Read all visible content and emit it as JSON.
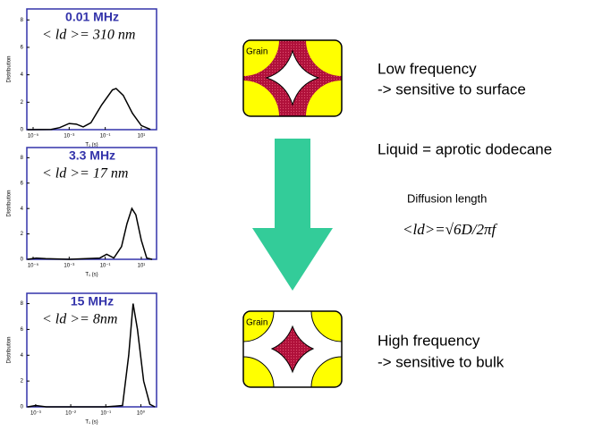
{
  "chart_data": [
    {
      "type": "line",
      "title": "0.01 MHz",
      "annotation": "< ld >= 310 nm",
      "x_label": "T₁ (s)",
      "y_label": "Distribution",
      "x_log": true,
      "xlim": [
        4.5e-06,
        70
      ],
      "ylim": [
        0,
        8.8
      ],
      "xticks": [
        {
          "value": 1e-05,
          "label": "10⁻⁵"
        },
        {
          "value": 0.001,
          "label": "10⁻³"
        },
        {
          "value": 0.1,
          "label": "10⁻¹"
        },
        {
          "value": 10,
          "label": "10¹"
        }
      ],
      "yticks": [
        0,
        2,
        4,
        6,
        8
      ],
      "series": [
        {
          "color": "#000000",
          "x": [
            5e-06,
            0.0001,
            0.0003,
            0.001,
            0.0025,
            0.006,
            0.016,
            0.063,
            0.25,
            0.4,
            1,
            3.2,
            10,
            32
          ],
          "values": [
            0,
            0.02,
            0.15,
            0.45,
            0.4,
            0.2,
            0.5,
            1.8,
            2.9,
            3.0,
            2.5,
            1.2,
            0.3,
            0.02
          ]
        }
      ]
    },
    {
      "type": "line",
      "title": "3.3 MHz",
      "annotation": "< ld >= 17 nm",
      "x_label": "T₁ (s)",
      "y_label": "Distribution",
      "x_log": true,
      "xlim": [
        4.5e-06,
        70
      ],
      "ylim": [
        0,
        8.8
      ],
      "xticks": [
        {
          "value": 1e-05,
          "label": "10⁻⁵"
        },
        {
          "value": 0.001,
          "label": "10⁻³"
        },
        {
          "value": 0.1,
          "label": "10⁻¹"
        },
        {
          "value": 10,
          "label": "10¹"
        }
      ],
      "yticks": [
        0,
        2,
        4,
        6,
        8
      ],
      "series": [
        {
          "color": "#000000",
          "x": [
            5e-06,
            1.5e-05,
            5e-05,
            0.001,
            0.05,
            0.12,
            0.3,
            0.8,
            1.6,
            3,
            5,
            10,
            20,
            40
          ],
          "values": [
            0,
            0.1,
            0.05,
            0,
            0.1,
            0.4,
            0.1,
            1.0,
            2.8,
            4.0,
            3.5,
            1.5,
            0.1,
            0
          ]
        }
      ]
    },
    {
      "type": "line",
      "title": "15 MHz",
      "annotation": "< ld >= 8nm",
      "x_label": "T₁ (s)",
      "y_label": "Distribution",
      "x_log": true,
      "xlim": [
        0.00056,
        2.8
      ],
      "ylim": [
        0,
        8.8
      ],
      "xticks": [
        {
          "value": 0.001,
          "label": "10⁻³"
        },
        {
          "value": 0.01,
          "label": "10⁻²"
        },
        {
          "value": 0.1,
          "label": "10⁻¹"
        },
        {
          "value": 1,
          "label": "10⁰"
        }
      ],
      "yticks": [
        0,
        2,
        4,
        6,
        8
      ],
      "series": [
        {
          "color": "#000000",
          "x": [
            0.0006,
            0.001,
            0.002,
            0.1,
            0.3,
            0.45,
            0.6,
            0.8,
            1.2,
            1.8,
            2.5
          ],
          "values": [
            0,
            0.1,
            0,
            0,
            0.1,
            4,
            8.0,
            6,
            2,
            0.2,
            0
          ]
        }
      ]
    }
  ],
  "diagram": {
    "grain_top": "Grain",
    "grain_bottom": "Grain",
    "low_freq": "Low frequency",
    "low_freq_note": "-> sensitive to surface",
    "liquid": "Liquid = aprotic dodecane",
    "diffusion_title": "Diffusion length",
    "formula": "<ld>=√6D/2πf",
    "high_freq": "High frequency",
    "high_freq_note": "-> sensitive to bulk"
  }
}
